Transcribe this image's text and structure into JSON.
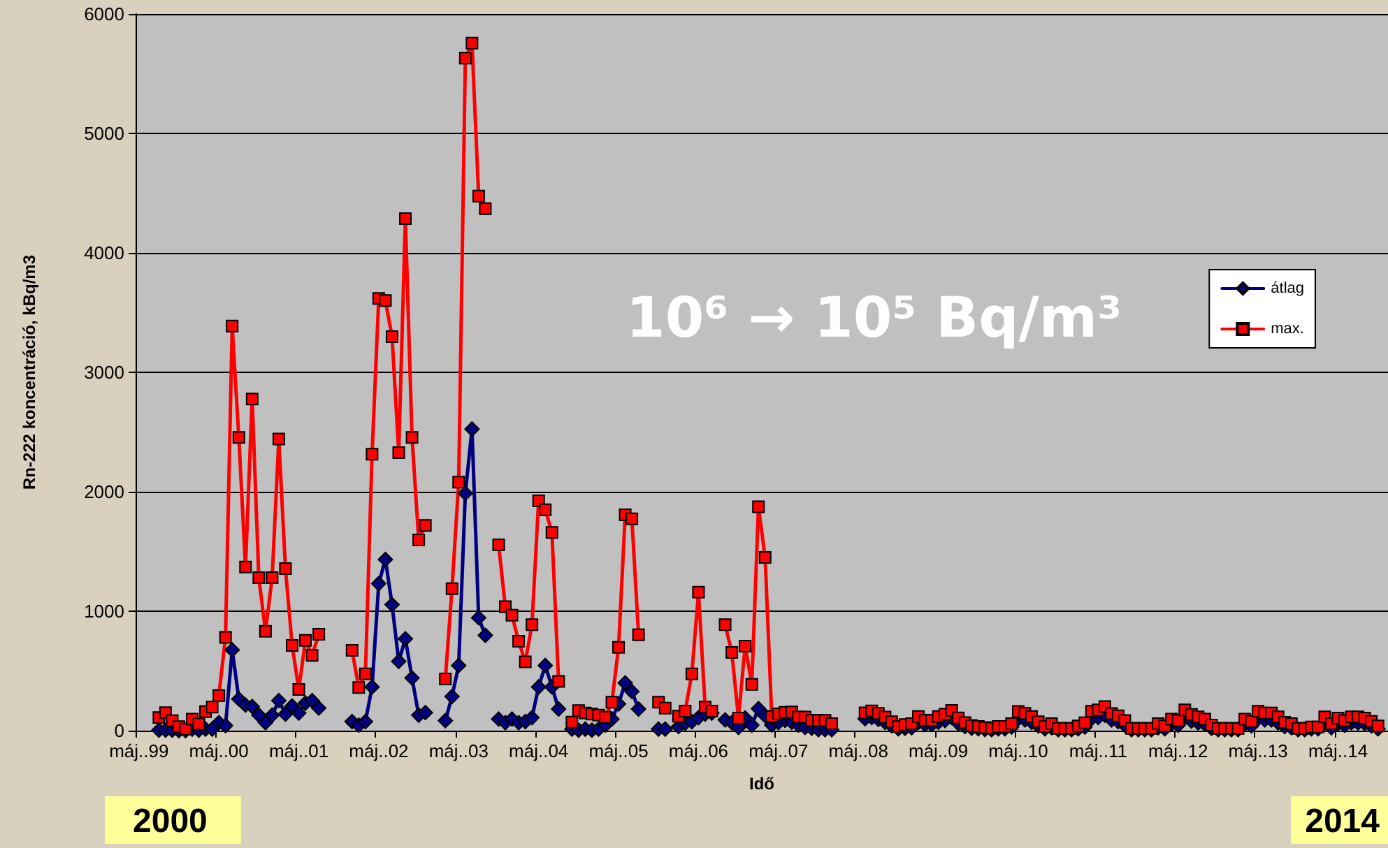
{
  "chart_data": {
    "type": "line",
    "xlabel": "Idő",
    "ylabel": "Rn-222 koncentráció, kBq/m3",
    "categories": [
      "máj..99",
      null,
      null,
      null,
      null,
      null,
      null,
      null,
      null,
      null,
      null,
      null,
      "máj..00",
      null,
      null,
      null,
      null,
      null,
      null,
      null,
      null,
      null,
      null,
      null,
      "máj..01",
      null,
      null,
      null,
      null,
      null,
      null,
      null,
      null,
      null,
      null,
      null,
      "máj..02",
      null,
      null,
      null,
      null,
      null,
      null,
      null,
      null,
      null,
      null,
      null,
      "máj..03",
      null,
      null,
      null,
      null,
      null,
      null,
      null,
      null,
      null,
      null,
      null,
      "máj..04",
      null,
      null,
      null,
      null,
      null,
      null,
      null,
      null,
      null,
      null,
      null,
      "máj..05",
      null,
      null,
      null,
      null,
      null,
      null,
      null,
      null,
      null,
      null,
      null,
      "máj..06",
      null,
      null,
      null,
      null,
      null,
      null,
      null,
      null,
      null,
      null,
      null,
      "máj..07",
      null,
      null,
      null,
      null,
      null,
      null,
      null,
      null,
      null,
      null,
      null,
      "máj..08",
      null,
      null,
      null,
      null,
      null,
      null,
      null,
      null,
      null,
      null,
      null,
      "máj..09",
      null,
      null,
      null,
      null,
      null,
      null,
      null,
      null,
      null,
      null,
      null,
      "máj..10",
      null,
      null,
      null,
      null,
      null,
      null,
      null,
      null,
      null,
      null,
      null,
      "máj..11",
      null,
      null,
      null,
      null,
      null,
      null,
      null,
      null,
      null,
      null,
      null,
      "máj..12",
      null,
      null,
      null,
      null,
      null,
      null,
      null,
      null,
      null,
      null,
      null,
      "máj..13",
      null,
      null,
      null,
      null,
      null,
      null,
      null,
      null,
      null,
      null,
      null,
      "máj..14",
      null,
      null,
      null,
      null,
      null,
      null,
      null
    ],
    "series": [
      {
        "name": "átlag",
        "color": "#000080",
        "marker": "diamond",
        "values": [
          null,
          null,
          null,
          4,
          4,
          4,
          0,
          0,
          13,
          4,
          13,
          13,
          67,
          42,
          676,
          265,
          214,
          202,
          130,
          67,
          130,
          252,
          139,
          206,
          147,
          231,
          252,
          189,
          null,
          null,
          null,
          null,
          76,
          46,
          76,
          366,
          1231,
          1433,
          1055,
          580,
          769,
          441,
          130,
          151,
          null,
          null,
          84,
          286,
          546,
          1987,
          2525,
          945,
          798,
          null,
          97,
          67,
          97,
          67,
          76,
          109,
          366,
          546,
          366,
          181,
          null,
          13,
          4,
          13,
          4,
          13,
          46,
          97,
          223,
          399,
          328,
          181,
          null,
          null,
          13,
          13,
          null,
          34,
          63,
          76,
          109,
          139,
          147,
          null,
          90,
          67,
          27,
          106,
          47,
          184,
          125,
          47,
          67,
          86,
          70,
          47,
          27,
          20,
          8,
          8,
          8,
          null,
          null,
          null,
          null,
          100,
          110,
          95,
          70,
          40,
          15,
          20,
          25,
          70,
          50,
          50,
          70,
          85,
          110,
          60,
          35,
          20,
          15,
          10,
          8,
          15,
          15,
          30,
          100,
          90,
          70,
          40,
          15,
          25,
          8,
          8,
          8,
          15,
          30,
          100,
          110,
          130,
          90,
          75,
          45,
          8,
          8,
          8,
          8,
          25,
          15,
          55,
          45,
          110,
          80,
          65,
          55,
          20,
          8,
          8,
          8,
          8,
          55,
          40,
          100,
          90,
          90,
          65,
          35,
          25,
          8,
          8,
          15,
          15,
          65,
          25,
          60,
          45,
          65,
          65,
          60,
          40,
          15,
          null
        ]
      },
      {
        "name": "max.",
        "color": "#ff0000",
        "marker": "square",
        "values": [
          null,
          null,
          null,
          109,
          151,
          84,
          34,
          13,
          97,
          55,
          160,
          197,
          294,
          781,
          3387,
          2454,
          1370,
          2777,
          1281,
          832,
          1281,
          2441,
          1357,
          714,
          345,
          756,
          630,
          807,
          null,
          null,
          null,
          null,
          672,
          361,
          475,
          2315,
          3618,
          3601,
          3298,
          2328,
          4286,
          2454,
          1597,
          1718,
          null,
          null,
          433,
          1189,
          2080,
          5630,
          5756,
          4475,
          4370,
          null,
          1555,
          1038,
          966,
          748,
          576,
          887,
          1924,
          1849,
          1660,
          412,
          null,
          71,
          168,
          147,
          139,
          130,
          113,
          239,
          697,
          1807,
          1773,
          803,
          null,
          null,
          239,
          189,
          null,
          122,
          164,
          475,
          1160,
          197,
          164,
          null,
          887,
          655,
          105,
          708,
          388,
          1875,
          1451,
          118,
          141,
          153,
          157,
          114,
          114,
          86,
          86,
          86,
          59,
          null,
          null,
          null,
          null,
          149,
          165,
          145,
          114,
          75,
          35,
          51,
          59,
          118,
          86,
          86,
          118,
          137,
          169,
          106,
          67,
          43,
          35,
          27,
          20,
          35,
          35,
          59,
          161,
          145,
          118,
          75,
          35,
          58,
          19,
          19,
          19,
          39,
          66,
          163,
          174,
          202,
          143,
          124,
          85,
          19,
          19,
          19,
          19,
          58,
          39,
          97,
          85,
          174,
          136,
          116,
          97,
          47,
          19,
          19,
          19,
          19,
          97,
          78,
          163,
          147,
          147,
          116,
          70,
          58,
          19,
          19,
          31,
          31,
          116,
          58,
          105,
          85,
          116,
          116,
          105,
          78,
          39,
          null
        ]
      }
    ],
    "ylim": [
      0,
      6000
    ],
    "yticks": [
      0,
      1000,
      2000,
      3000,
      4000,
      5000,
      6000
    ],
    "grid": "y",
    "legend": "right",
    "line_style": "solid",
    "annotations": [
      "10⁶ → 10⁵ Bq/m³",
      "2000",
      "2014"
    ]
  }
}
